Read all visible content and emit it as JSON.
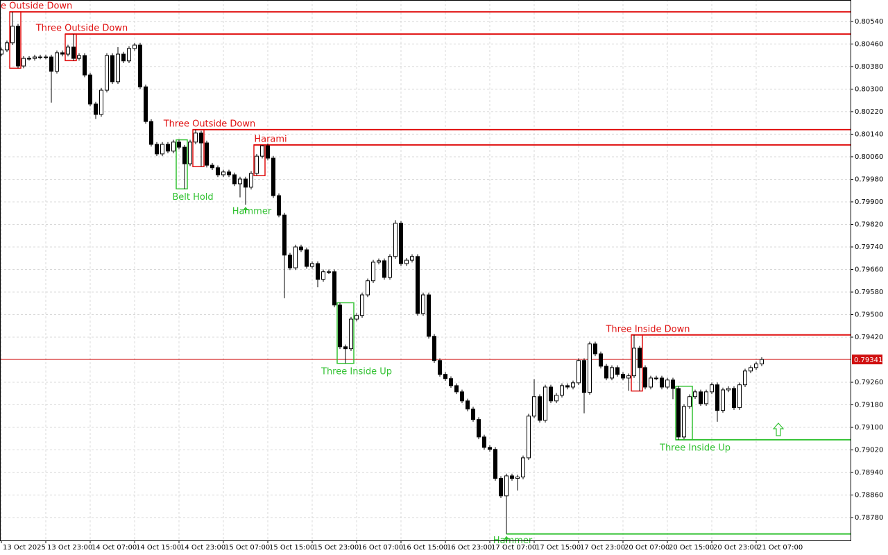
{
  "chart_data": {
    "type": "candlestick",
    "categories": [
      "13 Oct 2025",
      null,
      null,
      null,
      null,
      null,
      null,
      null,
      "13 Oct 23:00",
      null,
      null,
      null,
      null,
      null,
      null,
      null,
      "14 Oct 07:00",
      null,
      null,
      null,
      null,
      null,
      null,
      null,
      "14 Oct 15:00",
      null,
      null,
      null,
      null,
      null,
      null,
      null,
      "14 Oct 23:00",
      null,
      null,
      null,
      null,
      null,
      null,
      null,
      "15 Oct 07:00",
      null,
      null,
      null,
      null,
      null,
      null,
      null,
      "15 Oct 15:00",
      null,
      null,
      null,
      null,
      null,
      null,
      null,
      "15 Oct 23:00",
      null,
      null,
      null,
      null,
      null,
      null,
      null,
      "16 Oct 07:00",
      null,
      null,
      null,
      null,
      null,
      null,
      null,
      "16 Oct 15:00",
      null,
      null,
      null,
      null,
      null,
      null,
      null,
      "16 Oct 23:00",
      null,
      null,
      null,
      null,
      null,
      null,
      null,
      "17 Oct 07:00",
      null,
      null,
      null,
      null,
      null,
      null,
      null,
      "17 Oct 15:00",
      null,
      null,
      null,
      null,
      null,
      null,
      null,
      "17 Oct 23:00",
      null,
      null,
      null,
      null,
      null,
      null,
      null,
      "20 Oct 07:00",
      null,
      null,
      null,
      null,
      null,
      null,
      null,
      "20 Oct 15:00",
      null,
      null,
      null,
      null,
      null,
      null,
      null,
      "20 Oct 23:00",
      null,
      null,
      null,
      null,
      null,
      null,
      null,
      "21 Oct 07:00",
      null
    ],
    "open": [
      0.80424,
      0.80439,
      0.80464,
      0.80523,
      0.80382,
      0.80409,
      0.80409,
      0.80414,
      0.80414,
      0.80414,
      0.80363,
      0.80429,
      0.80424,
      0.80449,
      0.80409,
      0.80419,
      0.8035,
      0.80247,
      0.8021,
      0.80296,
      0.80419,
      0.80326,
      0.80424,
      0.804,
      0.80444,
      0.80456,
      0.80308,
      0.80185,
      0.80104,
      0.8007,
      0.80104,
      0.8008,
      0.80112,
      0.80094,
      0.80035,
      0.80112,
      0.80144,
      0.80109,
      0.8003,
      0.80021,
      0.79996,
      0.80006,
      0.79996,
      0.79964,
      0.79981,
      0.79952,
      0.80001,
      0.80062,
      0.80099,
      0.80055,
      0.79922,
      0.79853,
      0.79711,
      0.79666,
      0.7974,
      0.7973,
      0.79671,
      0.79681,
      0.79625,
      0.79652,
      0.79652,
      0.79534,
      0.79386,
      0.79379,
      0.79484,
      0.79497,
      0.7957,
      0.7962,
      0.79686,
      0.79691,
      0.79632,
      0.79706,
      0.79824,
      0.79681,
      0.79693,
      0.79706,
      0.79504,
      0.7957,
      0.79423,
      0.79337,
      0.79288,
      0.79273,
      0.79248,
      0.79226,
      0.79194,
      0.79165,
      0.79128,
      0.79066,
      0.79029,
      0.79022,
      0.78919,
      0.78857,
      0.78928,
      0.78919,
      0.78924,
      0.78992,
      0.7914,
      0.79209,
      0.79125,
      0.79243,
      0.79194,
      0.79214,
      0.79248,
      0.79243,
      0.79258,
      0.79337,
      0.79224,
      0.79396,
      0.79361,
      0.79317,
      0.79275,
      0.79312,
      0.79288,
      0.79275,
      0.79283,
      0.79381,
      0.79312,
      0.79243,
      0.79275,
      0.79275,
      0.79243,
      0.79268,
      0.79238,
      0.79066,
      0.79174,
      0.79209,
      0.79226,
      0.79184,
      0.79226,
      0.79251,
      0.7916,
      0.79233,
      0.79238,
      0.7917,
      0.79251,
      0.793,
      0.79312,
      0.79325
    ],
    "high": [
      0.80447,
      0.80472,
      0.80574,
      0.80531,
      0.80417,
      0.80417,
      0.80422,
      0.80422,
      0.80422,
      0.80422,
      0.80437,
      0.80437,
      0.80457,
      0.80495,
      0.80427,
      0.80427,
      0.80358,
      0.80255,
      0.80304,
      0.80427,
      0.80427,
      0.80449,
      0.80432,
      0.80452,
      0.80463,
      0.80464,
      0.80316,
      0.80193,
      0.80112,
      0.80112,
      0.80112,
      0.8012,
      0.8012,
      0.80102,
      0.8012,
      0.80156,
      0.80152,
      0.80117,
      0.80038,
      0.80029,
      0.80014,
      0.80014,
      0.80004,
      0.79989,
      0.79989,
      0.80009,
      0.8007,
      0.80102,
      0.80107,
      0.80063,
      0.7993,
      0.79861,
      0.79719,
      0.79748,
      0.79748,
      0.79738,
      0.79689,
      0.79689,
      0.7966,
      0.7966,
      0.7966,
      0.79542,
      0.79394,
      0.79492,
      0.79505,
      0.79578,
      0.79628,
      0.79694,
      0.79699,
      0.79699,
      0.79714,
      0.79835,
      0.79832,
      0.79701,
      0.79714,
      0.79714,
      0.79578,
      0.79578,
      0.79431,
      0.79345,
      0.79296,
      0.79281,
      0.79256,
      0.79234,
      0.79202,
      0.79173,
      0.79136,
      0.79074,
      0.79037,
      0.7903,
      0.78927,
      0.78936,
      0.78936,
      0.78932,
      0.79,
      0.79148,
      0.79271,
      0.79217,
      0.79251,
      0.79251,
      0.79222,
      0.79256,
      0.79256,
      0.79266,
      0.79345,
      0.79345,
      0.79404,
      0.79404,
      0.79369,
      0.79325,
      0.7932,
      0.7932,
      0.79296,
      0.79291,
      0.79428,
      0.79389,
      0.7932,
      0.79283,
      0.79283,
      0.79283,
      0.79276,
      0.79276,
      0.79246,
      0.79182,
      0.79217,
      0.79234,
      0.79234,
      0.79234,
      0.79259,
      0.79259,
      0.79241,
      0.79246,
      0.79246,
      0.79259,
      0.79308,
      0.7932,
      0.79333,
      0.79349
    ],
    "low": [
      0.80416,
      0.80431,
      0.80456,
      0.80374,
      0.80374,
      0.80401,
      0.80401,
      0.80406,
      0.80406,
      0.80252,
      0.80355,
      0.80416,
      0.80416,
      0.80401,
      0.80401,
      0.80342,
      0.80239,
      0.80194,
      0.80202,
      0.80288,
      0.80318,
      0.80318,
      0.80392,
      0.80392,
      0.80436,
      0.803,
      0.80177,
      0.80096,
      0.80062,
      0.80062,
      0.80072,
      0.80072,
      0.80086,
      0.79946,
      0.80027,
      0.80104,
      0.80025,
      0.80022,
      0.80013,
      0.79988,
      0.79988,
      0.79988,
      0.79956,
      0.79916,
      0.7989,
      0.79944,
      0.79993,
      0.80054,
      0.80047,
      0.79914,
      0.79845,
      0.79558,
      0.79658,
      0.79658,
      0.79722,
      0.79663,
      0.79663,
      0.79597,
      0.79617,
      0.79644,
      0.79526,
      0.79378,
      0.79327,
      0.79371,
      0.79476,
      0.79489,
      0.79562,
      0.79612,
      0.79678,
      0.79624,
      0.79624,
      0.79698,
      0.79673,
      0.79673,
      0.79685,
      0.79496,
      0.79496,
      0.79415,
      0.79329,
      0.7928,
      0.79265,
      0.7924,
      0.79218,
      0.79186,
      0.79157,
      0.7912,
      0.79058,
      0.79021,
      0.79014,
      0.78911,
      0.78849,
      0.78722,
      0.78911,
      0.78876,
      0.78916,
      0.78984,
      0.79132,
      0.79117,
      0.79117,
      0.79186,
      0.79186,
      0.79206,
      0.79235,
      0.79235,
      0.7925,
      0.7915,
      0.79216,
      0.79353,
      0.79309,
      0.79267,
      0.79267,
      0.7928,
      0.79267,
      0.7923,
      0.79275,
      0.79229,
      0.79235,
      0.79235,
      0.79267,
      0.79235,
      0.79235,
      0.792,
      0.79056,
      0.79058,
      0.79166,
      0.79201,
      0.79176,
      0.79176,
      0.79218,
      0.7912,
      0.79152,
      0.79225,
      0.79162,
      0.79162,
      0.79243,
      0.79292,
      0.79304,
      0.79317
    ],
    "close": [
      0.80439,
      0.80464,
      0.80523,
      0.80382,
      0.80409,
      0.80409,
      0.80414,
      0.80414,
      0.80414,
      0.80363,
      0.80429,
      0.80424,
      0.80449,
      0.80409,
      0.80419,
      0.8035,
      0.80247,
      0.8021,
      0.80296,
      0.80419,
      0.80326,
      0.80424,
      0.804,
      0.80444,
      0.80456,
      0.80308,
      0.80185,
      0.80104,
      0.8007,
      0.80104,
      0.8008,
      0.80112,
      0.80094,
      0.80035,
      0.80112,
      0.80144,
      0.80109,
      0.8003,
      0.80021,
      0.79996,
      0.80006,
      0.79996,
      0.79964,
      0.79981,
      0.79952,
      0.80001,
      0.80062,
      0.80099,
      0.80055,
      0.79922,
      0.79853,
      0.79711,
      0.79666,
      0.7974,
      0.7973,
      0.79671,
      0.79681,
      0.79625,
      0.79652,
      0.79652,
      0.79534,
      0.79386,
      0.79379,
      0.79484,
      0.79497,
      0.7957,
      0.7962,
      0.79686,
      0.79691,
      0.79632,
      0.79706,
      0.79824,
      0.79681,
      0.79693,
      0.79706,
      0.79504,
      0.7957,
      0.79423,
      0.79337,
      0.79288,
      0.79273,
      0.79248,
      0.79226,
      0.79194,
      0.79165,
      0.79128,
      0.79066,
      0.79029,
      0.79022,
      0.78919,
      0.78857,
      0.78928,
      0.78919,
      0.78924,
      0.78992,
      0.7914,
      0.79209,
      0.79125,
      0.79243,
      0.79194,
      0.79214,
      0.79248,
      0.79243,
      0.79258,
      0.79337,
      0.79224,
      0.79396,
      0.79361,
      0.79317,
      0.79275,
      0.79312,
      0.79288,
      0.79275,
      0.79283,
      0.79381,
      0.79312,
      0.79243,
      0.79275,
      0.79275,
      0.79243,
      0.79268,
      0.79238,
      0.79066,
      0.79174,
      0.79209,
      0.79226,
      0.79184,
      0.79226,
      0.79251,
      0.7916,
      0.79233,
      0.79238,
      0.7917,
      0.79251,
      0.793,
      0.79312,
      0.79325,
      0.79341
    ],
    "up_color": "#ffffff",
    "down_color": "#000000",
    "ylim": [
      0.78699,
      0.80616
    ],
    "yticks": [
      {
        "value": 0.8054,
        "label": "0.80540"
      },
      {
        "value": 0.8046,
        "label": "0.80460"
      },
      {
        "value": 0.8038,
        "label": "0.80380"
      },
      {
        "value": 0.803,
        "label": "0.80300"
      },
      {
        "value": 0.8022,
        "label": "0.80220"
      },
      {
        "value": 0.8014,
        "label": "0.80140"
      },
      {
        "value": 0.8006,
        "label": "0.80060"
      },
      {
        "value": 0.7998,
        "label": "0.79980"
      },
      {
        "value": 0.799,
        "label": "0.79900"
      },
      {
        "value": 0.7982,
        "label": "0.79820"
      },
      {
        "value": 0.7974,
        "label": "0.79740"
      },
      {
        "value": 0.7966,
        "label": "0.79660"
      },
      {
        "value": 0.7958,
        "label": "0.79580"
      },
      {
        "value": 0.795,
        "label": "0.79500"
      },
      {
        "value": 0.7942,
        "label": "0.79420"
      },
      {
        "value": 0.7926,
        "label": "0.79260"
      },
      {
        "value": 0.7918,
        "label": "0.79180"
      },
      {
        "value": 0.791,
        "label": "0.79100"
      },
      {
        "value": 0.7902,
        "label": "0.79020"
      },
      {
        "value": 0.7894,
        "label": "0.78940"
      },
      {
        "value": 0.7886,
        "label": "0.78860"
      },
      {
        "value": 0.7878,
        "label": "0.78780"
      }
    ],
    "grid": true,
    "current_price": 0.79341,
    "current_price_color": "#d01010",
    "patterns": [
      {
        "label": "Three Outside Down",
        "direction": "down",
        "shape": "box",
        "color": "#e01010",
        "candles": [
          2,
          3
        ],
        "level": 0.80574
      },
      {
        "label": "Three Outside Down",
        "direction": "down",
        "shape": "box",
        "color": "#e01010",
        "candles": [
          12,
          13
        ],
        "level": 0.80495
      },
      {
        "label": "Three Outside Down",
        "direction": "down",
        "shape": "box",
        "color": "#e01010",
        "candles": [
          35,
          36
        ],
        "level": 0.80156
      },
      {
        "label": "Harami",
        "direction": "down",
        "shape": "box",
        "color": "#e01010",
        "candles": [
          46,
          47
        ],
        "level": 0.80102
      },
      {
        "label": "Three Inside Down",
        "direction": "down",
        "shape": "box",
        "color": "#e01010",
        "candles": [
          114,
          115
        ],
        "level": 0.79428
      },
      {
        "label": "Belt Hold",
        "direction": "up",
        "shape": "box",
        "color": "#33c233",
        "candles": [
          32,
          33
        ]
      },
      {
        "label": "Hammer",
        "direction": "up",
        "shape": "arrow",
        "color": "#33c233",
        "candles": [
          44,
          44
        ]
      },
      {
        "label": "Three Inside Up",
        "direction": "up",
        "shape": "box",
        "color": "#33c233",
        "candles": [
          61,
          63
        ]
      },
      {
        "label": "Three Inside Up",
        "direction": "up",
        "shape": "box",
        "color": "#33c233",
        "candles": [
          122,
          124
        ],
        "level": 0.79056
      },
      {
        "label": "Hammer",
        "direction": "up",
        "shape": "arrow",
        "color": "#33c233",
        "candles": [
          91,
          91
        ],
        "level": 0.78722
      }
    ]
  }
}
